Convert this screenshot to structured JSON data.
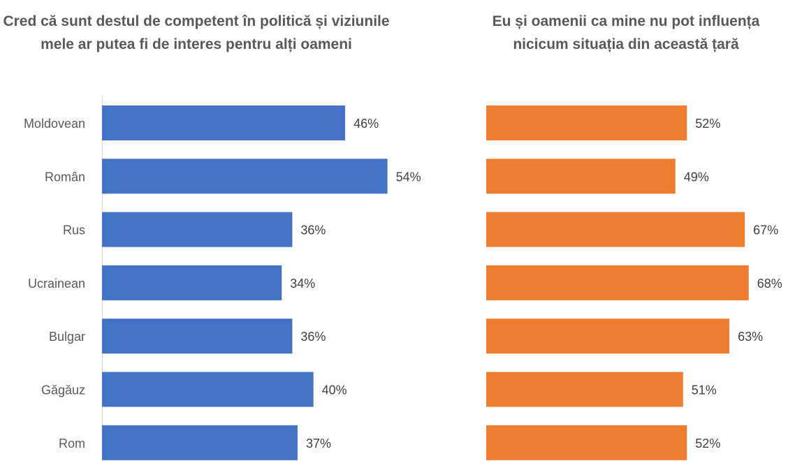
{
  "chart_data": [
    {
      "type": "bar",
      "orientation": "horizontal",
      "title": "Cred că sunt destul de competent în politică și viziunile mele ar putea fi de interes pentru alți oameni",
      "categories": [
        "Moldovean",
        "Român",
        "Rus",
        "Ucrainean",
        "Bulgar",
        "Găgăuz",
        "Rom"
      ],
      "values": [
        46,
        54,
        36,
        34,
        36,
        40,
        37
      ],
      "data_labels": [
        "46%",
        "54%",
        "36%",
        "34%",
        "36%",
        "40%",
        "37%"
      ],
      "color": "#4472C4",
      "xlim": [
        0,
        60
      ],
      "grid": false,
      "legend": "none"
    },
    {
      "type": "bar",
      "orientation": "horizontal",
      "title": "Eu și oamenii ca mine nu pot influența nicicum situația din această țară",
      "categories": [
        "Moldovean",
        "Român",
        "Rus",
        "Ucrainean",
        "Bulgar",
        "Găgăuz",
        "Rom"
      ],
      "values": [
        52,
        49,
        67,
        68,
        63,
        51,
        52
      ],
      "data_labels": [
        "52%",
        "49%",
        "67%",
        "68%",
        "63%",
        "51%",
        "52%"
      ],
      "color": "#ED7D31",
      "xlim": [
        0,
        80
      ],
      "grid": false,
      "legend": "none"
    }
  ]
}
